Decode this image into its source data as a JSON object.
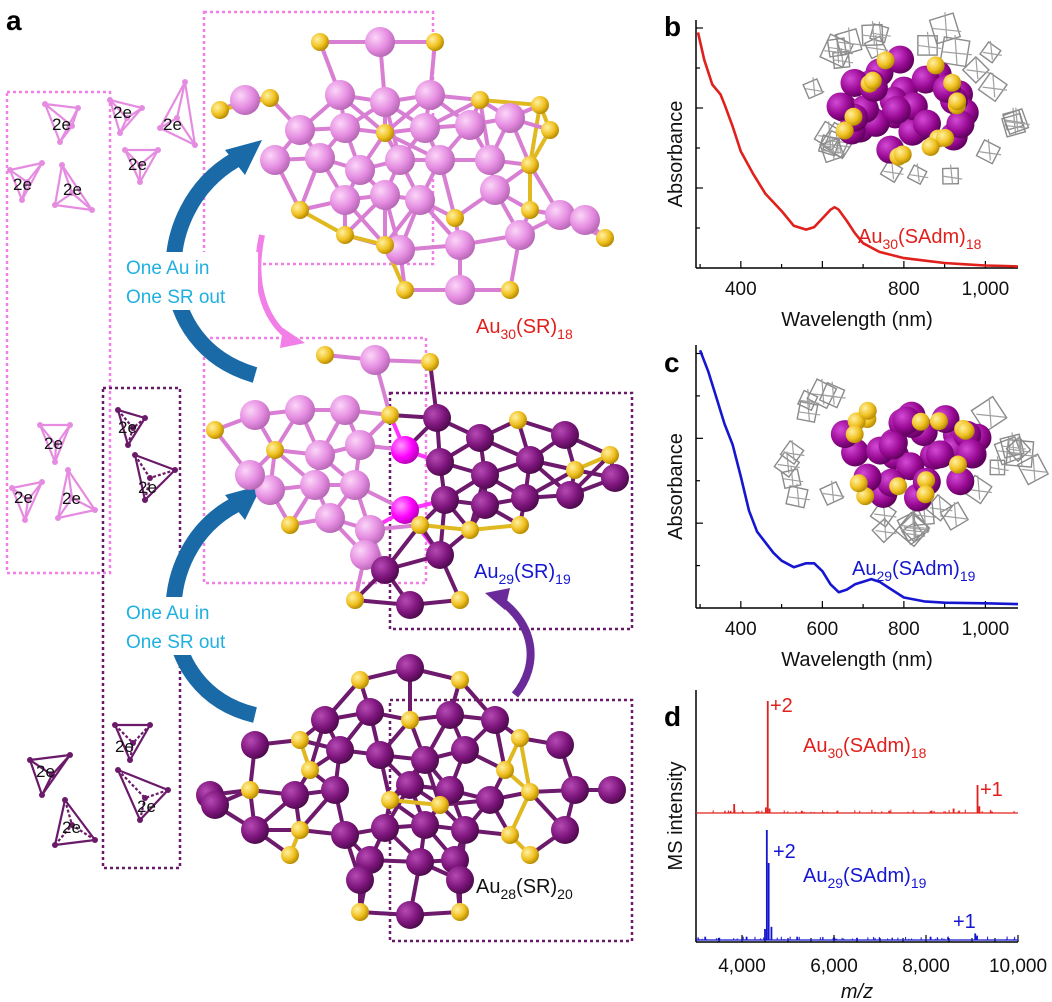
{
  "panels": {
    "a": {
      "label": "a",
      "cluster_labels": {
        "au30": {
          "main": "Au",
          "s1": "30",
          "mid": "(SR)",
          "s2": "18"
        },
        "au29": {
          "main": "Au",
          "s1": "29",
          "mid": "(SR)",
          "s2": "19"
        },
        "au28": {
          "main": "Au",
          "s1": "28",
          "mid": "(SR)",
          "s2": "20"
        }
      },
      "arrow_text_upper": [
        "One Au in",
        "One SR out"
      ],
      "arrow_text_lower": [
        "One Au in",
        "One SR out"
      ],
      "electron_label": "2e",
      "colors": {
        "au_light": "#e58ce1",
        "au_dark": "#7d157c",
        "au_core": "#ff00ff",
        "sulfur": "#f0c020",
        "arrow_blue": "#1a6aa8",
        "arrow_pink": "#f27fe8",
        "arrow_purple": "#6b2a9a",
        "text_cyan": "#1fb0e0",
        "red": "#e0201c",
        "blue": "#1616d0"
      }
    },
    "b": {
      "label": "b"
    },
    "c": {
      "label": "c"
    },
    "d": {
      "label": "d"
    }
  },
  "chart_data": [
    {
      "panel": "b",
      "type": "line",
      "xlabel": "Wavelength (nm)",
      "ylabel": "Absorbance",
      "xlim": [
        290,
        1080
      ],
      "ylim": [
        0,
        1
      ],
      "xticks": [
        400,
        600,
        800,
        1000
      ],
      "xtick_labels": [
        "400",
        "",
        "800",
        "1,000"
      ],
      "grid": false,
      "series": [
        {
          "name": "Au30(SAdm)18",
          "color": "#e0201c",
          "x": [
            295,
            310,
            330,
            350,
            360,
            380,
            400,
            430,
            460,
            500,
            530,
            560,
            580,
            600,
            620,
            630,
            640,
            660,
            680,
            700,
            740,
            800,
            850,
            900,
            950,
            1000,
            1050,
            1080
          ],
          "y": [
            0.95,
            0.84,
            0.74,
            0.7,
            0.66,
            0.57,
            0.47,
            0.38,
            0.3,
            0.23,
            0.17,
            0.155,
            0.165,
            0.2,
            0.235,
            0.245,
            0.235,
            0.19,
            0.14,
            0.1,
            0.065,
            0.04,
            0.03,
            0.02,
            0.015,
            0.01,
            0.008,
            0.006
          ]
        }
      ],
      "annotation": {
        "main": "Au",
        "s1": "30",
        "mid": "(SAdm)",
        "s2": "18"
      }
    },
    {
      "panel": "c",
      "type": "line",
      "xlabel": "Wavelength (nm)",
      "ylabel": "Absorbance",
      "xlim": [
        290,
        1080
      ],
      "ylim": [
        0,
        1
      ],
      "xticks": [
        400,
        600,
        800,
        1000
      ],
      "xtick_labels": [
        "400",
        "600",
        "800",
        "1,000"
      ],
      "grid": false,
      "series": [
        {
          "name": "Au29(SAdm)19",
          "color": "#1616d0",
          "x": [
            300,
            320,
            340,
            360,
            380,
            400,
            420,
            440,
            460,
            480,
            500,
            530,
            560,
            580,
            600,
            620,
            640,
            660,
            680,
            700,
            720,
            740,
            760,
            800,
            850,
            900,
            1000,
            1080
          ],
          "y": [
            0.98,
            0.9,
            0.8,
            0.7,
            0.62,
            0.5,
            0.37,
            0.29,
            0.25,
            0.21,
            0.18,
            0.155,
            0.17,
            0.17,
            0.14,
            0.09,
            0.06,
            0.07,
            0.09,
            0.1,
            0.11,
            0.1,
            0.08,
            0.04,
            0.025,
            0.02,
            0.018,
            0.015
          ]
        }
      ],
      "annotation": {
        "main": "Au",
        "s1": "29",
        "mid": "(SAdm)",
        "s2": "19"
      }
    },
    {
      "panel": "d",
      "type": "line",
      "xlabel": "m/z",
      "ylabel": "MS intensity",
      "xlim": [
        3000,
        10000
      ],
      "xticks": [
        4000,
        6000,
        8000,
        10000
      ],
      "xtick_labels": [
        "4,000",
        "6,000",
        "8,000",
        "10,000"
      ],
      "grid": false,
      "series": [
        {
          "name": "Au30(SAdm)18",
          "color": "#e0201c",
          "peaks": [
            [
              3830,
              0.08
            ],
            [
              4520,
              0.05
            ],
            [
              4560,
              1.0
            ],
            [
              4600,
              0.04
            ],
            [
              5300,
              0.02
            ],
            [
              7200,
              0.02
            ],
            [
              8600,
              0.04
            ],
            [
              9120,
              0.25
            ],
            [
              9160,
              0.06
            ]
          ],
          "charge_labels": [
            {
              "text": "+2",
              "x": 4560
            },
            {
              "text": "+1",
              "x": 9120
            }
          ],
          "annotation": {
            "main": "Au",
            "s1": "30",
            "mid": "(SAdm)",
            "s2": "18"
          }
        },
        {
          "name": "Au29(SAdm)19",
          "color": "#1616d0",
          "peaks": [
            [
              3200,
              0.03
            ],
            [
              4100,
              0.03
            ],
            [
              4500,
              0.1
            ],
            [
              4540,
              1.0
            ],
            [
              4580,
              0.7
            ],
            [
              4640,
              0.12
            ],
            [
              5200,
              0.03
            ],
            [
              6500,
              0.02
            ],
            [
              8100,
              0.03
            ],
            [
              9070,
              0.06
            ],
            [
              9110,
              0.04
            ]
          ],
          "charge_labels": [
            {
              "text": "+2",
              "x": 4560
            },
            {
              "text": "+1",
              "x": 9100
            }
          ],
          "annotation": {
            "main": "Au",
            "s1": "29",
            "mid": "(SAdm)",
            "s2": "19"
          }
        }
      ]
    }
  ]
}
